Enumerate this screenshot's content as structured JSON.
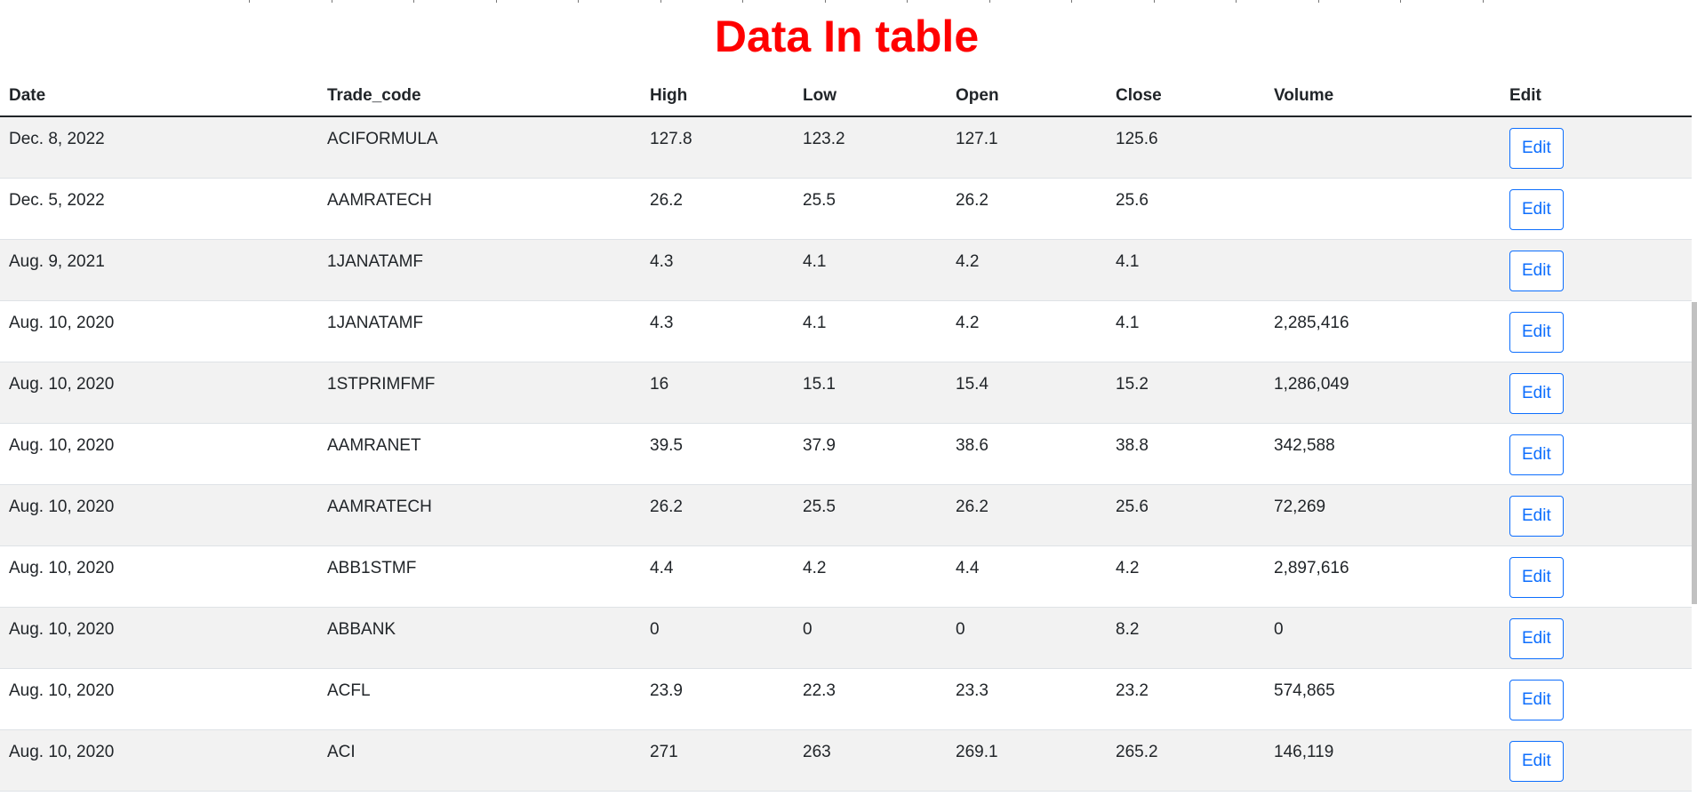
{
  "title": "Data In table",
  "table": {
    "columns": [
      "Date",
      "Trade_code",
      "High",
      "Low",
      "Open",
      "Close",
      "Volume",
      "Edit"
    ],
    "rows": [
      {
        "date": "Dec. 8, 2022",
        "trade_code": "ACIFORMULA",
        "high": "127.8",
        "low": "123.2",
        "open": "127.1",
        "close": "125.6",
        "volume": "",
        "edit_label": "Edit"
      },
      {
        "date": "Dec. 5, 2022",
        "trade_code": "AAMRATECH",
        "high": "26.2",
        "low": "25.5",
        "open": "26.2",
        "close": "25.6",
        "volume": "",
        "edit_label": "Edit"
      },
      {
        "date": "Aug. 9, 2021",
        "trade_code": "1JANATAMF",
        "high": "4.3",
        "low": "4.1",
        "open": "4.2",
        "close": "4.1",
        "volume": "",
        "edit_label": "Edit"
      },
      {
        "date": "Aug. 10, 2020",
        "trade_code": "1JANATAMF",
        "high": "4.3",
        "low": "4.1",
        "open": "4.2",
        "close": "4.1",
        "volume": "2,285,416",
        "edit_label": "Edit"
      },
      {
        "date": "Aug. 10, 2020",
        "trade_code": "1STPRIMFMF",
        "high": "16",
        "low": "15.1",
        "open": "15.4",
        "close": "15.2",
        "volume": "1,286,049",
        "edit_label": "Edit"
      },
      {
        "date": "Aug. 10, 2020",
        "trade_code": "AAMRANET",
        "high": "39.5",
        "low": "37.9",
        "open": "38.6",
        "close": "38.8",
        "volume": "342,588",
        "edit_label": "Edit"
      },
      {
        "date": "Aug. 10, 2020",
        "trade_code": "AAMRATECH",
        "high": "26.2",
        "low": "25.5",
        "open": "26.2",
        "close": "25.6",
        "volume": "72,269",
        "edit_label": "Edit"
      },
      {
        "date": "Aug. 10, 2020",
        "trade_code": "ABB1STMF",
        "high": "4.4",
        "low": "4.2",
        "open": "4.4",
        "close": "4.2",
        "volume": "2,897,616",
        "edit_label": "Edit"
      },
      {
        "date": "Aug. 10, 2020",
        "trade_code": "ABBANK",
        "high": "0",
        "low": "0",
        "open": "0",
        "close": "8.2",
        "volume": "0",
        "edit_label": "Edit"
      },
      {
        "date": "Aug. 10, 2020",
        "trade_code": "ACFL",
        "high": "23.9",
        "low": "22.3",
        "open": "23.3",
        "close": "23.2",
        "volume": "574,865",
        "edit_label": "Edit"
      },
      {
        "date": "Aug. 10, 2020",
        "trade_code": "ACI",
        "high": "271",
        "low": "263",
        "open": "269.1",
        "close": "265.2",
        "volume": "146,119",
        "edit_label": "Edit"
      }
    ]
  },
  "colors": {
    "title": "#ff0000",
    "edit_button": "#0d6efd",
    "row_stripe": "#f2f2f2"
  }
}
